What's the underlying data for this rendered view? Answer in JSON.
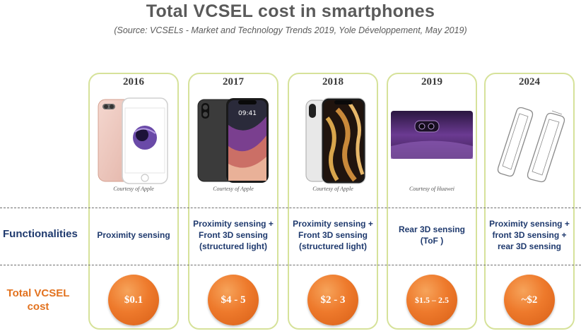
{
  "title": "Total VCSEL cost in smartphones",
  "subtitle": "(Source: VCSELs - Market and Technology Trends 2019, Yole Développement, May 2019)",
  "row_labels": {
    "functionalities": "Functionalities",
    "total_cost": "Total VCSEL\ncost"
  },
  "columns": [
    {
      "year": "2016",
      "courtesy": "Courtesy of Apple",
      "image": "iphone-7-plus-image",
      "functionality": "Proximity sensing",
      "cost": "$0.1"
    },
    {
      "year": "2017",
      "courtesy": "Courtesy of Apple",
      "image": "iphone-x-image",
      "functionality": "Proximity sensing +\nFront 3D sensing\n(structured light)",
      "cost": "$4 - 5"
    },
    {
      "year": "2018",
      "courtesy": "Courtesy of Apple",
      "image": "iphone-xs-image",
      "functionality": "Proximity sensing +\nFront 3D sensing\n(structured light)",
      "cost": "$2 - 3"
    },
    {
      "year": "2019",
      "courtesy": "Courtesy of Huawei",
      "image": "huawei-rear-camera-image",
      "functionality": "Rear 3D sensing\n(ToF )",
      "cost": "$1.5 – 2.5"
    },
    {
      "year": "2024",
      "courtesy": "",
      "image": "phone-sketch-image",
      "functionality": "Proximity sensing +\nfront 3D sensing +\nrear 3D sensing",
      "cost": "~$2"
    }
  ],
  "colors": {
    "title": "#5a5a5a",
    "column_border": "#d6e29a",
    "functionality_text": "#1f3a6e",
    "cost_label": "#e2721f",
    "cost_circle": "#ee7a2c"
  }
}
